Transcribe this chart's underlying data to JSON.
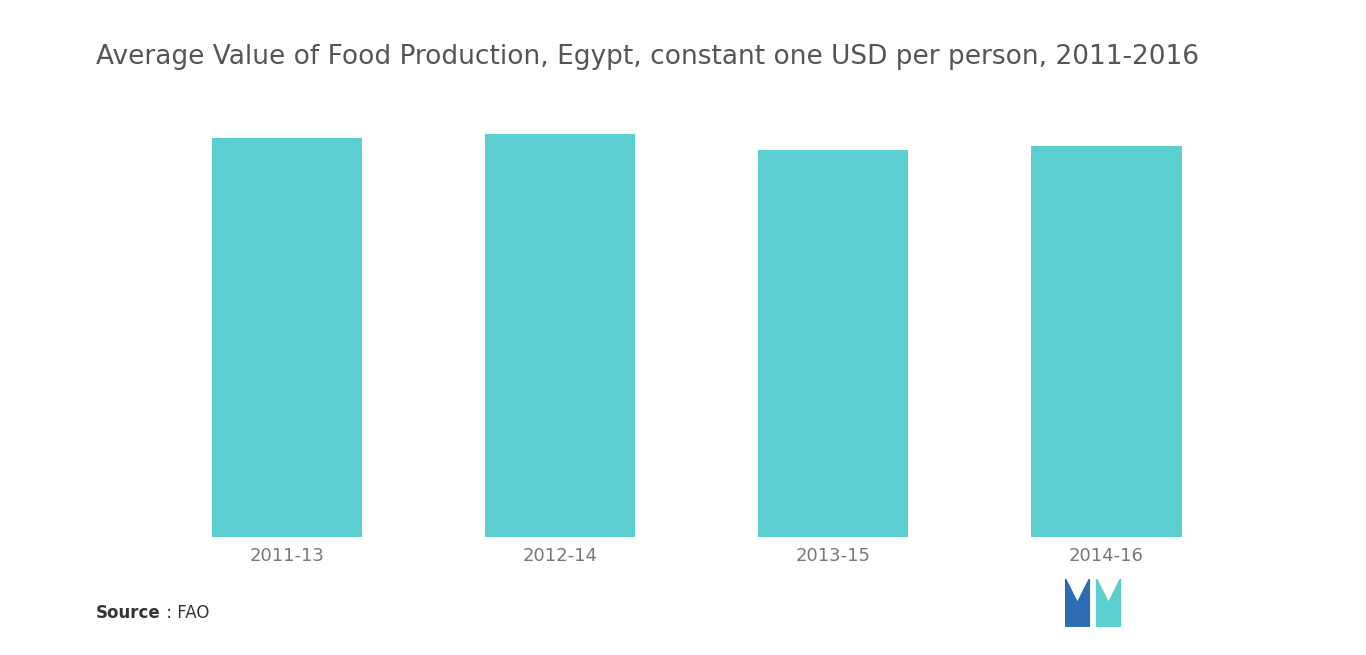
{
  "title": "Average Value of Food Production, Egypt, constant one USD per person, 2011-2016",
  "categories": [
    "2011-13",
    "2012-14",
    "2013-15",
    "2014-16"
  ],
  "values": [
    100,
    101,
    97,
    98
  ],
  "bar_color": "#5BCFCF",
  "background_color": "#ffffff",
  "text_color": "#777777",
  "title_fontsize": 19,
  "tick_fontsize": 13,
  "source_bold": "Source",
  "source_normal": " : FAO",
  "ylim": [
    0,
    110
  ],
  "bar_width": 0.55,
  "logo_blue": "#2E6DB4",
  "logo_teal": "#5BCFCF"
}
